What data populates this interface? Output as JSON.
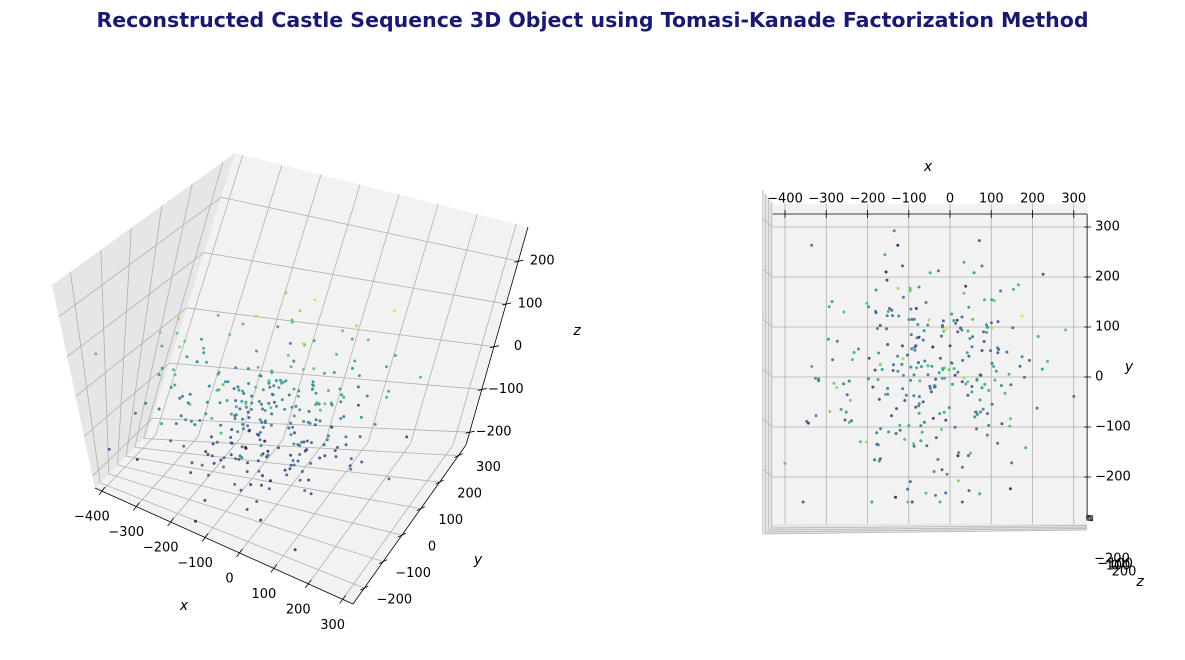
{
  "title": "Reconstructed Castle Sequence 3D Object using Tomasi-Kanade Factorization Method",
  "colors": {
    "title": "#191970",
    "pane": "#f2f2f2",
    "pane_dark": "#e6e6e6",
    "grid": "#b0b0b0",
    "axis": "#000000"
  },
  "chart_data": [
    {
      "type": "scatter",
      "view": "perspective 3D (elev 30, azim -60)",
      "xlabel": "x",
      "ylabel": "y",
      "zlabel": "z",
      "x_ticks": [
        "−400",
        "−300",
        "−200",
        "−100",
        "0",
        "100",
        "200",
        "300"
      ],
      "y_ticks": [
        "−200",
        "−100",
        "0",
        "100",
        "200",
        "300"
      ],
      "z_ticks": [
        "−200",
        "−100",
        "0",
        "100",
        "200"
      ],
      "xlim": [
        -420,
        330
      ],
      "ylim": [
        -260,
        340
      ],
      "zlim": [
        -230,
        280
      ],
      "grid": true,
      "colormap": "viridis",
      "point_count": 300
    },
    {
      "type": "scatter",
      "view": "top-down 3D (elev 90, azim -90)",
      "xlabel": "x",
      "ylabel": "y",
      "zlabel": "z",
      "x_ticks": [
        "−400",
        "−300",
        "−200",
        "−100",
        "0",
        "100",
        "200",
        "300"
      ],
      "y_ticks": [
        "−200",
        "−100",
        "0",
        "100",
        "200",
        "300"
      ],
      "z_ticks": [
        "−200",
        "−100",
        "0",
        "100",
        "200"
      ],
      "xlim": [
        -420,
        330
      ],
      "ylim": [
        -260,
        340
      ],
      "zlim": [
        -230,
        280
      ],
      "grid": true,
      "colormap": "viridis",
      "point_count": 300
    }
  ]
}
